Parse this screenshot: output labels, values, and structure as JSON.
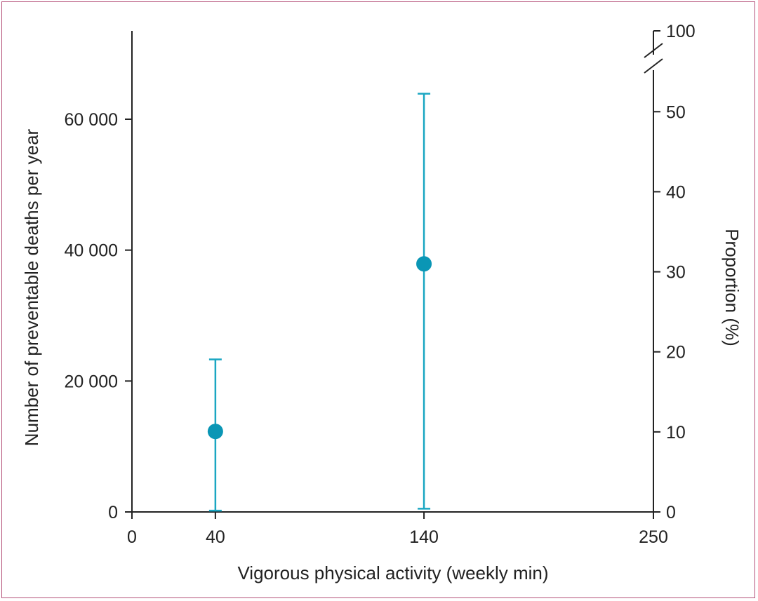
{
  "chart_data": {
    "type": "scatter",
    "title": "",
    "xlabel": "Vigorous physical activity (weekly min)",
    "ylabel": "Number of preventable deaths per year",
    "y2label": "Proportion (%)",
    "x_ticks": [
      "0",
      "40",
      "140",
      "250"
    ],
    "y_ticks": [
      "0",
      "20 000",
      "40 000",
      "60 000"
    ],
    "y2_ticks": [
      "0",
      "10",
      "20",
      "30",
      "40",
      "50",
      "100"
    ],
    "xlim": [
      0,
      250
    ],
    "ylim": [
      0,
      73500
    ],
    "y2lim": [
      0,
      60.1
    ],
    "y2_axis_break": true,
    "points": [
      {
        "x": 40,
        "y": 12300,
        "ci_low": 200,
        "ci_high": 23300
      },
      {
        "x": 140,
        "y": 37900,
        "ci_low": 500,
        "ci_high": 63900
      }
    ],
    "colors": {
      "series": "#0a96b5",
      "error_bar": "#1aa6c2",
      "axis": "#222222",
      "frame": "#b5527a"
    }
  }
}
